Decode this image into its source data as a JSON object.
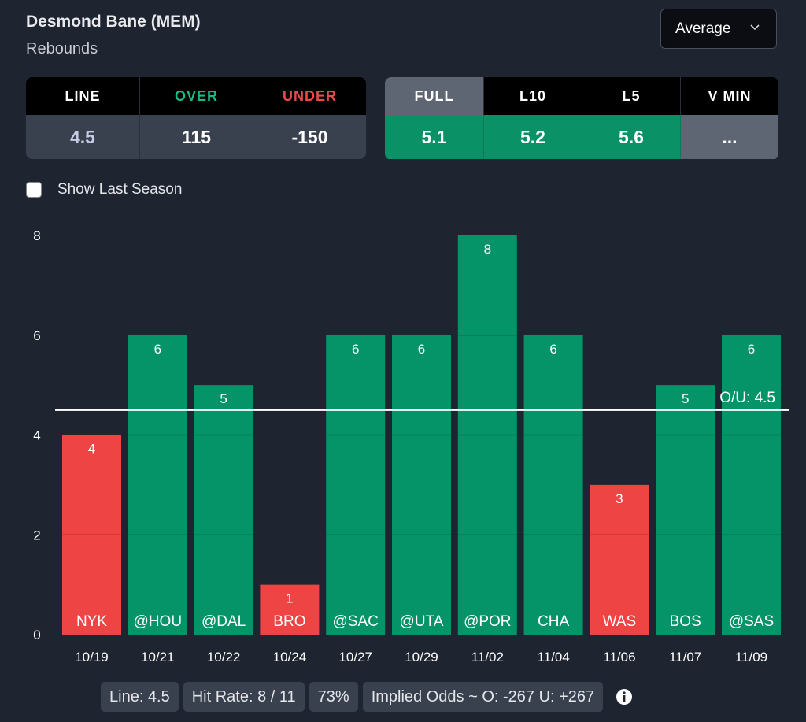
{
  "header": {
    "player": "Desmond Bane (MEM)",
    "stat": "Rebounds",
    "mode_selected": "Average"
  },
  "odds": {
    "headers": [
      "LINE",
      "OVER",
      "UNDER"
    ],
    "values": [
      "4.5",
      "115",
      "-150"
    ],
    "colors": {
      "line": "#ffffff",
      "over": "#1db984",
      "under": "#e84a4a"
    }
  },
  "splits": {
    "headers": [
      "FULL",
      "L10",
      "L5",
      "V MIN"
    ],
    "values": [
      "5.1",
      "5.2",
      "5.6",
      "..."
    ],
    "active": "FULL"
  },
  "options": {
    "show_last_season_label": "Show Last Season",
    "show_last_season_checked": false
  },
  "chart_data": {
    "type": "bar",
    "categories": [
      "10/19",
      "10/21",
      "10/22",
      "10/24",
      "10/27",
      "10/29",
      "11/02",
      "11/04",
      "11/06",
      "11/07",
      "11/09"
    ],
    "opponents": [
      "NYK",
      "@HOU",
      "@DAL",
      "BRO",
      "@SAC",
      "@UTA",
      "@POR",
      "CHA",
      "WAS",
      "BOS",
      "@SAS"
    ],
    "values": [
      4,
      6,
      5,
      1,
      6,
      6,
      8,
      6,
      3,
      5,
      6
    ],
    "yticks": [
      0,
      2,
      4,
      6,
      8
    ],
    "ylim": [
      0,
      8
    ],
    "line": 4.5,
    "line_label": "O/U: 4.5",
    "colors": {
      "over": "#049467",
      "under": "#ef4444",
      "line": "#ffffff"
    }
  },
  "footer": {
    "pills": [
      "Line: 4.5",
      "Hit Rate: 8 / 11",
      "73%",
      "Implied Odds ~ O: -267 U: +267"
    ]
  }
}
